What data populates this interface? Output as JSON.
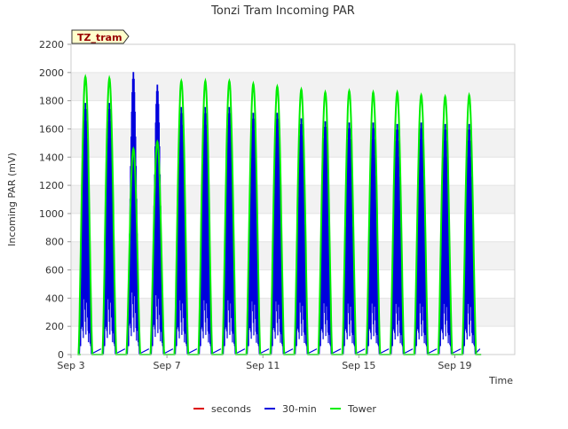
{
  "chart_data": {
    "type": "line",
    "title": "Tonzi Tram Incoming PAR",
    "xlabel": "Time",
    "ylabel": "Incoming PAR (mV)",
    "ylim": [
      0,
      2200
    ],
    "yticks": [
      0,
      200,
      400,
      600,
      800,
      1000,
      1200,
      1400,
      1600,
      1800,
      2000,
      2200
    ],
    "xlim_day": [
      3,
      21.5
    ],
    "xticks": [
      {
        "day": 3,
        "label": "Sep 3"
      },
      {
        "day": 7,
        "label": "Sep 7"
      },
      {
        "day": 11,
        "label": "Sep 11"
      },
      {
        "day": 15,
        "label": "Sep 15"
      },
      {
        "day": 19,
        "label": "Sep 19"
      }
    ],
    "grid": "horizontal bands",
    "legend_position": "bottom",
    "annotation": "TZ_tram",
    "series": [
      {
        "name": "seconds",
        "color": "#dd0000",
        "peaks": []
      },
      {
        "name": "30-min",
        "color": "#0000dd",
        "peaks": [
          1790,
          1790,
          2010,
          1920,
          1760,
          1760,
          1760,
          1720,
          1720,
          1680,
          1660,
          1650,
          1650,
          1640,
          1650,
          1640,
          1640
        ]
      },
      {
        "name": "Tower",
        "color": "#00ee00",
        "peaks": [
          1970,
          1960,
          1460,
          1510,
          1940,
          1940,
          1940,
          1920,
          1900,
          1880,
          1860,
          1870,
          1860,
          1860,
          1840,
          1830,
          1840
        ]
      }
    ],
    "peak_days": [
      3.6,
      4.6,
      5.6,
      6.6,
      7.6,
      8.6,
      9.6,
      10.6,
      11.6,
      12.6,
      13.6,
      14.6,
      15.6,
      16.6,
      17.6,
      18.6,
      19.6
    ]
  }
}
